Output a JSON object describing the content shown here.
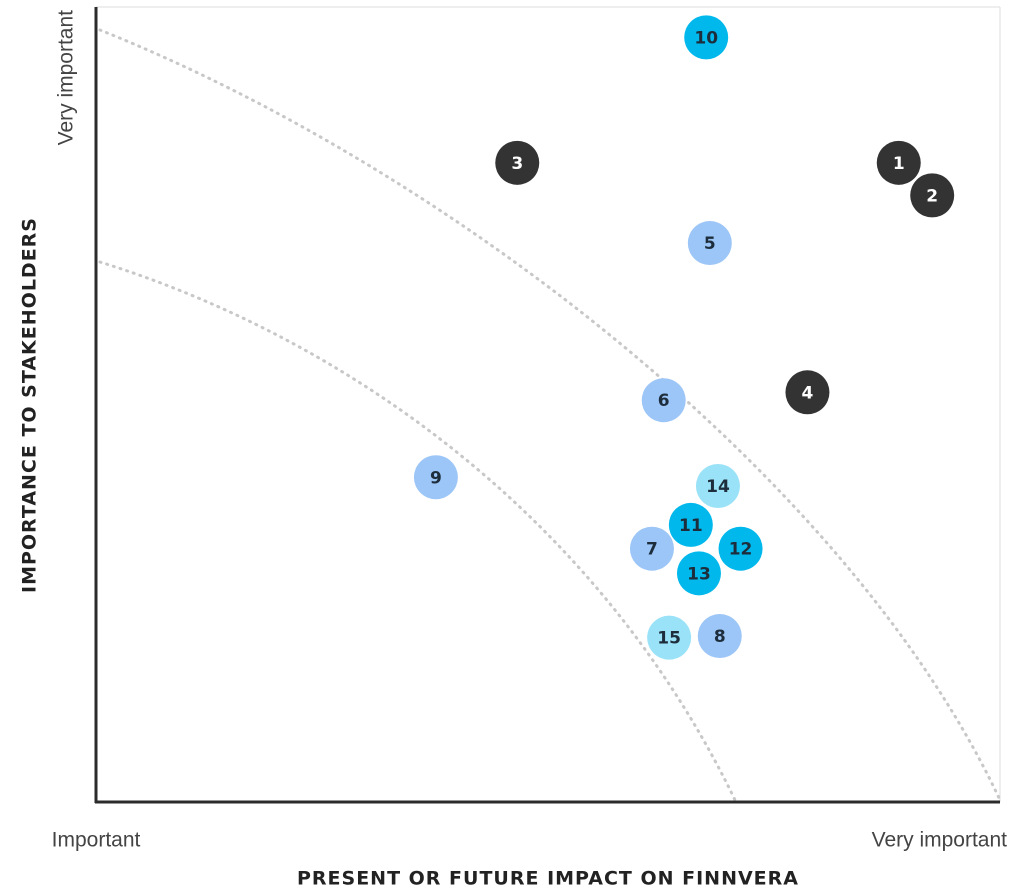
{
  "chart_data": {
    "type": "scatter",
    "x_label": "PRESENT OR FUTURE IMPACT ON FINNVERA",
    "y_label": "IMPORTANCE TO STAKEHOLDERS",
    "xlim": [
      0,
      100
    ],
    "ylim": [
      0,
      100
    ],
    "xticks": [
      {
        "value": 0,
        "label": "Important"
      },
      {
        "value": 100,
        "label": "Very important"
      }
    ],
    "yticks": [
      {
        "value": 100,
        "label": "Very important"
      }
    ],
    "labels": [
      "1",
      "2",
      "3",
      "4",
      "5",
      "6",
      "7",
      "8",
      "9",
      "10",
      "11",
      "12",
      "13",
      "14",
      "15"
    ],
    "x": [
      88.8,
      92.5,
      46.6,
      78.7,
      67.9,
      62.8,
      61.5,
      69.0,
      37.6,
      67.5,
      65.8,
      71.3,
      66.7,
      68.8,
      63.4
    ],
    "values": [
      80.5,
      76.4,
      80.5,
      51.6,
      70.4,
      50.6,
      31.9,
      20.9,
      40.9,
      96.3,
      34.9,
      31.9,
      28.8,
      39.8,
      20.7
    ],
    "colors": [
      "#333333",
      "#333333",
      "#333333",
      "#333333",
      "#9cc6f7",
      "#9cc6f7",
      "#9cc6f7",
      "#9cc6f7",
      "#9cc6f7",
      "#00b8ec",
      "#00b8ec",
      "#00b8ec",
      "#00b8ec",
      "#9ae2f7",
      "#9ae2f7"
    ]
  }
}
